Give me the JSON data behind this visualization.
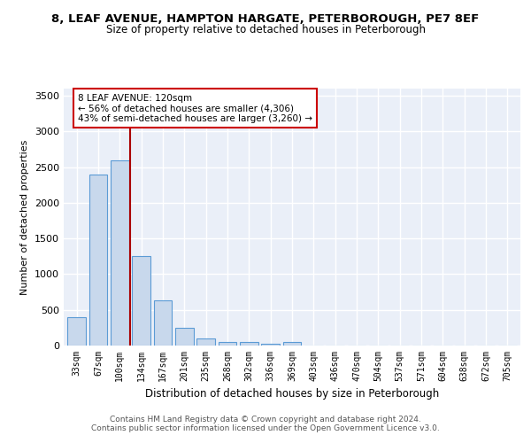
{
  "title_line1": "8, LEAF AVENUE, HAMPTON HARGATE, PETERBOROUGH, PE7 8EF",
  "title_line2": "Size of property relative to detached houses in Peterborough",
  "xlabel": "Distribution of detached houses by size in Peterborough",
  "ylabel": "Number of detached properties",
  "categories": [
    "33sqm",
    "67sqm",
    "100sqm",
    "134sqm",
    "167sqm",
    "201sqm",
    "235sqm",
    "268sqm",
    "302sqm",
    "336sqm",
    "369sqm",
    "403sqm",
    "436sqm",
    "470sqm",
    "504sqm",
    "537sqm",
    "571sqm",
    "604sqm",
    "638sqm",
    "672sqm",
    "705sqm"
  ],
  "values": [
    400,
    2400,
    2600,
    1250,
    630,
    250,
    95,
    55,
    50,
    30,
    55,
    0,
    0,
    0,
    0,
    0,
    0,
    0,
    0,
    0,
    0
  ],
  "bar_color": "#c8d8ec",
  "bar_edge_color": "#5b9bd5",
  "vline_color": "#aa0000",
  "annotation_line1": "8 LEAF AVENUE: 120sqm",
  "annotation_line2": "← 56% of detached houses are smaller (4,306)",
  "annotation_line3": "43% of semi-detached houses are larger (3,260) →",
  "annotation_box_color": "white",
  "annotation_box_edge_color": "#cc0000",
  "ylim": [
    0,
    3600
  ],
  "yticks": [
    0,
    500,
    1000,
    1500,
    2000,
    2500,
    3000,
    3500
  ],
  "bg_color": "#eaeff8",
  "grid_color": "white",
  "footer_line1": "Contains HM Land Registry data © Crown copyright and database right 2024.",
  "footer_line2": "Contains public sector information licensed under the Open Government Licence v3.0."
}
